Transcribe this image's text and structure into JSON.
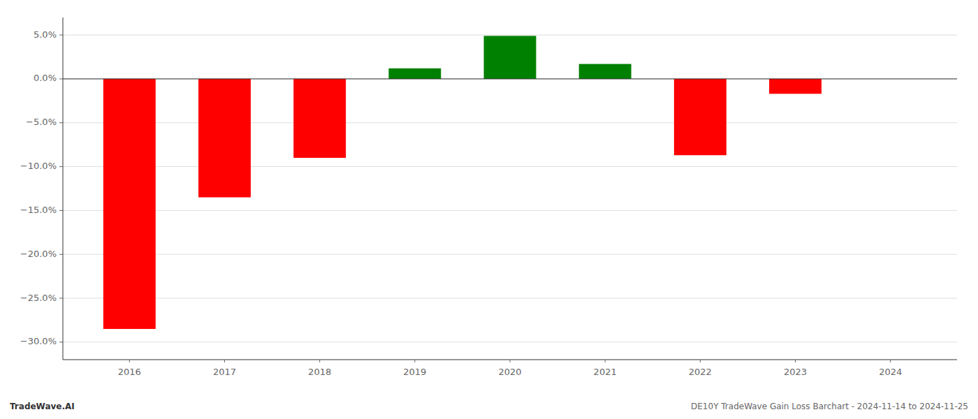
{
  "chart_data": {
    "type": "bar",
    "title": "DE10Y TradeWave Gain Loss Barchart - 2024-11-14 to 2024-11-25",
    "annotations": [
      "TradeWave.AI"
    ],
    "x": [
      2016,
      2017,
      2018,
      2019,
      2020,
      2021,
      2022,
      2023,
      2024
    ],
    "values": [
      -0.285,
      -0.135,
      -0.09,
      0.012,
      0.049,
      0.017,
      -0.087,
      -0.017,
      null
    ],
    "colors": [
      "red",
      "red",
      "red",
      "green",
      "green",
      "green",
      "red",
      "red",
      null
    ],
    "xlim": [
      2015.3,
      2024.7
    ],
    "xticks": [
      2016,
      2017,
      2018,
      2019,
      2020,
      2021,
      2022,
      2023,
      2024
    ],
    "ylim": [
      -0.32,
      0.07
    ],
    "yticks": [
      {
        "value": 0.05,
        "label": "5.0%"
      },
      {
        "value": 0.0,
        "label": "0.0%"
      },
      {
        "value": -0.05,
        "label": "−5.0%"
      },
      {
        "value": -0.1,
        "label": "−10.0%"
      },
      {
        "value": -0.15,
        "label": "−15.0%"
      },
      {
        "value": -0.2,
        "label": "−20.0%"
      },
      {
        "value": -0.25,
        "label": "−25.0%"
      },
      {
        "value": -0.3,
        "label": "−30.0%"
      }
    ],
    "grid": true
  }
}
